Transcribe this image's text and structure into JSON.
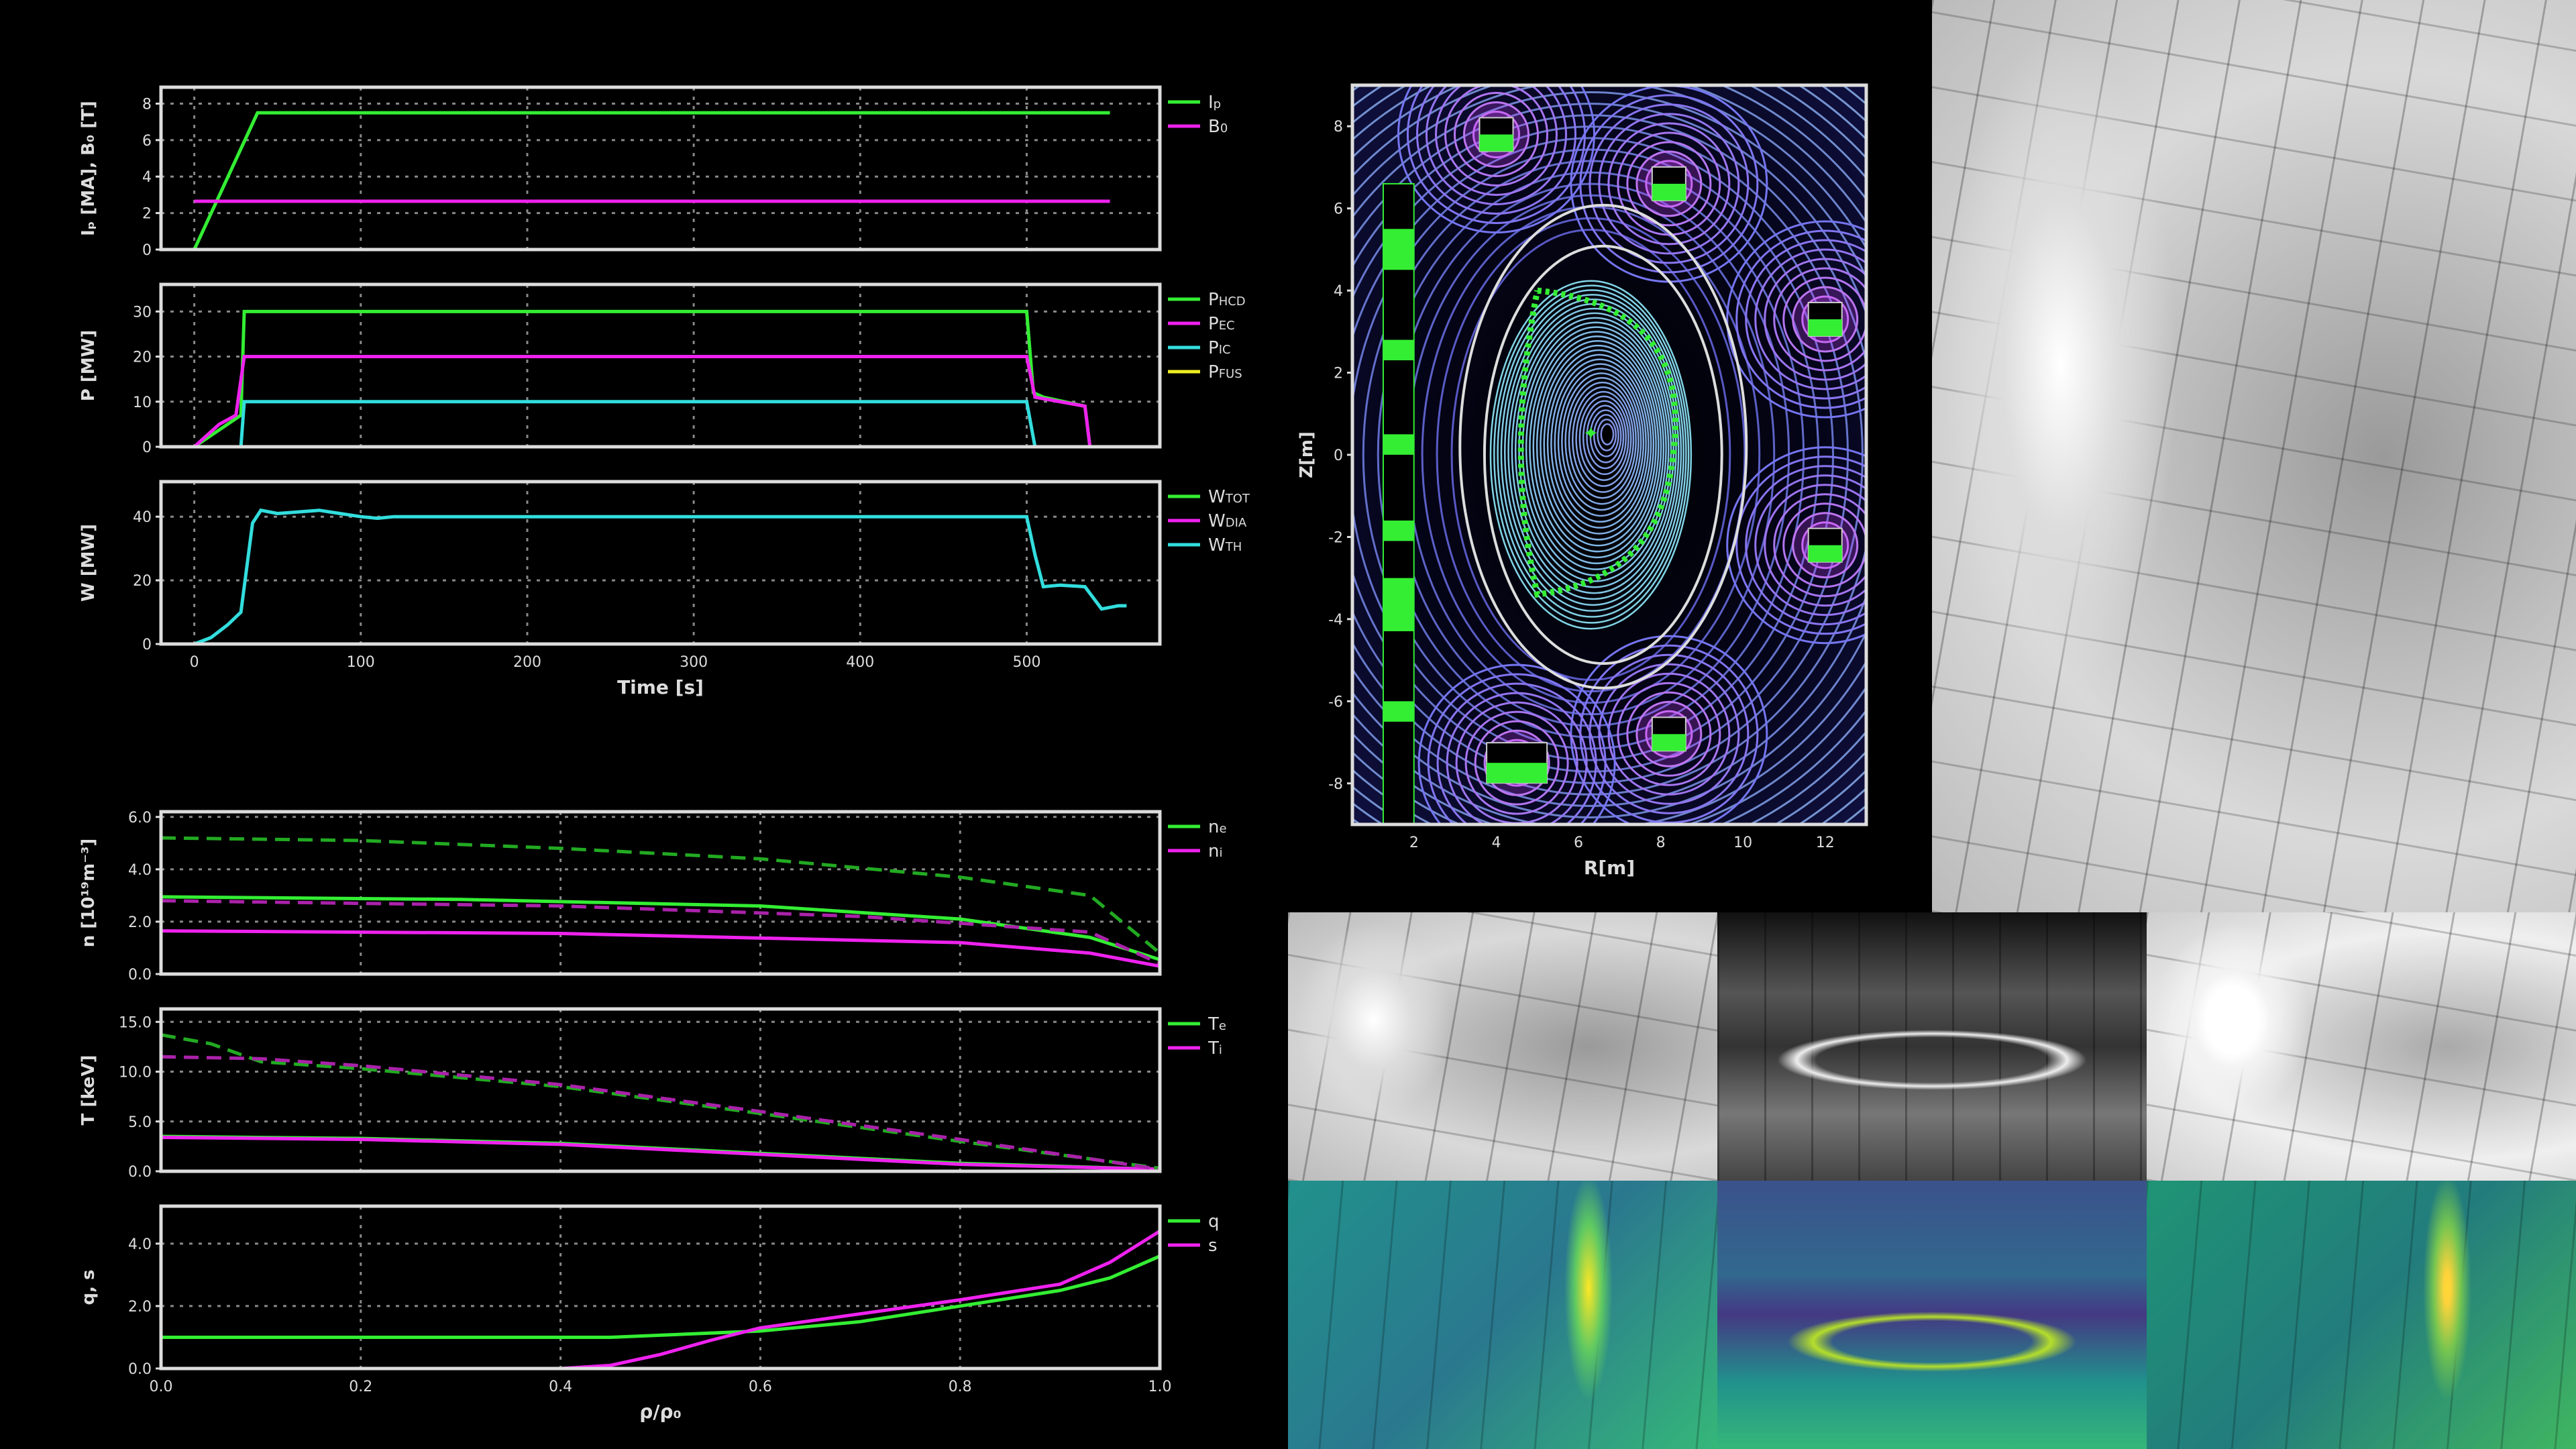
{
  "colors": {
    "green": "#33ee33",
    "magenta": "#ee22ee",
    "cyan": "#33dddd",
    "yellow": "#eeee22",
    "dkgreen": "#22aa22",
    "dkmagenta": "#aa22aa",
    "axis": "#dddddd",
    "grid": "#888888"
  },
  "chart_data": [
    {
      "type": "line",
      "ylabel": "Iₚ [MA], B₀ [T]",
      "xlim": [
        -20,
        580
      ],
      "ylim": [
        0,
        8.9
      ],
      "yticks": [
        "0",
        "2",
        "4",
        "6",
        "8"
      ],
      "ytickvals": [
        0,
        2,
        4,
        6,
        8
      ],
      "xtickvals": [
        0,
        100,
        200,
        300,
        400,
        500
      ],
      "xticks": [],
      "xlabel": "",
      "series": [
        {
          "name": "I",
          "sub": "p",
          "color": "green",
          "points": [
            [
              0,
              0
            ],
            [
              38,
              7.5
            ],
            [
              550,
              7.5
            ]
          ]
        },
        {
          "name": "B",
          "sub": "0",
          "color": "magenta",
          "points": [
            [
              0,
              2.65
            ],
            [
              550,
              2.65
            ]
          ]
        }
      ]
    },
    {
      "type": "line",
      "ylabel": "P [MW]",
      "xlim": [
        -20,
        580
      ],
      "ylim": [
        0,
        36
      ],
      "yticks": [
        "0",
        "10",
        "20",
        "30"
      ],
      "ytickvals": [
        0,
        10,
        20,
        30
      ],
      "xtickvals": [
        0,
        100,
        200,
        300,
        400,
        500
      ],
      "xticks": [],
      "xlabel": "",
      "series": [
        {
          "name": "P",
          "sub": "HCD",
          "color": "green",
          "points": [
            [
              0,
              0
            ],
            [
              28,
              7
            ],
            [
              30,
              30
            ],
            [
              500,
              30
            ],
            [
              504,
              12
            ],
            [
              510,
              11
            ],
            [
              535,
              9
            ],
            [
              538,
              0
            ]
          ]
        },
        {
          "name": "P",
          "sub": "EC",
          "color": "magenta",
          "points": [
            [
              0,
              0
            ],
            [
              15,
              5
            ],
            [
              25,
              7
            ],
            [
              30,
              20
            ],
            [
              500,
              20
            ],
            [
              505,
              11
            ],
            [
              535,
              9
            ],
            [
              538,
              0
            ]
          ]
        },
        {
          "name": "P",
          "sub": "IC",
          "color": "cyan",
          "points": [
            [
              28,
              0
            ],
            [
              30,
              10
            ],
            [
              500,
              10
            ],
            [
              505,
              0
            ]
          ]
        },
        {
          "name": "P",
          "sub": "FUS",
          "color": "yellow",
          "points": []
        }
      ]
    },
    {
      "type": "line",
      "ylabel": "W [MW]",
      "xlim": [
        -20,
        580
      ],
      "ylim": [
        0,
        51
      ],
      "yticks": [
        "0",
        "20",
        "40"
      ],
      "ytickvals": [
        0,
        20,
        40
      ],
      "xtickvals": [
        0,
        100,
        200,
        300,
        400,
        500
      ],
      "xticks": [
        "0",
        "100",
        "200",
        "300",
        "400",
        "500"
      ],
      "xlabel": "Time [s]",
      "series": [
        {
          "name": "W",
          "sub": "TOT",
          "color": "green",
          "points": []
        },
        {
          "name": "W",
          "sub": "DIA",
          "color": "magenta",
          "points": []
        },
        {
          "name": "W",
          "sub": "TH",
          "color": "cyan",
          "points": [
            [
              0,
              0
            ],
            [
              10,
              2
            ],
            [
              20,
              6
            ],
            [
              28,
              10
            ],
            [
              35,
              38
            ],
            [
              40,
              42
            ],
            [
              50,
              41
            ],
            [
              75,
              42
            ],
            [
              100,
              40
            ],
            [
              110,
              39.5
            ],
            [
              120,
              40
            ],
            [
              500,
              40
            ],
            [
              505,
              28
            ],
            [
              510,
              18
            ],
            [
              520,
              18.5
            ],
            [
              535,
              18
            ],
            [
              545,
              11
            ],
            [
              555,
              12
            ],
            [
              560,
              12
            ]
          ]
        }
      ]
    },
    {
      "type": "line",
      "ylabel": "n [10¹⁹m⁻³]",
      "xlim": [
        0,
        1
      ],
      "ylim": [
        0,
        6.2
      ],
      "yticks": [
        "0.0",
        "2.0",
        "4.0",
        "6.0"
      ],
      "ytickvals": [
        0,
        2,
        4,
        6
      ],
      "xtickvals": [
        0,
        0.2,
        0.4,
        0.6,
        0.8,
        1
      ],
      "xticks": [],
      "xlabel": "",
      "series": [
        {
          "name": "n",
          "sub": "e",
          "color": "green",
          "points": [
            [
              0,
              2.95
            ],
            [
              0.3,
              2.85
            ],
            [
              0.6,
              2.6
            ],
            [
              0.8,
              2.1
            ],
            [
              0.93,
              1.4
            ],
            [
              1,
              0.55
            ]
          ]
        },
        {
          "name": "n",
          "sub": "i",
          "color": "magenta",
          "points": [
            [
              0,
              1.65
            ],
            [
              0.4,
              1.55
            ],
            [
              0.8,
              1.2
            ],
            [
              0.93,
              0.8
            ],
            [
              1,
              0.3
            ]
          ]
        },
        {
          "name": "",
          "sub": "",
          "color": "dkgreen",
          "dashed": true,
          "points": [
            [
              0,
              5.2
            ],
            [
              0.2,
              5.1
            ],
            [
              0.4,
              4.8
            ],
            [
              0.6,
              4.4
            ],
            [
              0.8,
              3.7
            ],
            [
              0.93,
              3.0
            ],
            [
              1,
              0.8
            ]
          ]
        },
        {
          "name": "",
          "sub": "",
          "color": "dkmagenta",
          "dashed": true,
          "points": [
            [
              0,
              2.8
            ],
            [
              0.4,
              2.6
            ],
            [
              0.7,
              2.2
            ],
            [
              0.93,
              1.6
            ],
            [
              1,
              0.4
            ]
          ]
        }
      ]
    },
    {
      "type": "line",
      "ylabel": "T [keV]",
      "xlim": [
        0,
        1
      ],
      "ylim": [
        0,
        16.3
      ],
      "yticks": [
        "0.0",
        "5.0",
        "10.0",
        "15.0"
      ],
      "ytickvals": [
        0,
        5,
        10,
        15
      ],
      "xtickvals": [
        0,
        0.2,
        0.4,
        0.6,
        0.8,
        1
      ],
      "xticks": [],
      "xlabel": "",
      "series": [
        {
          "name": "T",
          "sub": "e",
          "color": "green",
          "points": [
            [
              0,
              3.5
            ],
            [
              0.2,
              3.3
            ],
            [
              0.4,
              2.8
            ],
            [
              0.6,
              1.8
            ],
            [
              0.8,
              0.8
            ],
            [
              1,
              0.2
            ]
          ]
        },
        {
          "name": "T",
          "sub": "i",
          "color": "magenta",
          "points": [
            [
              0,
              3.4
            ],
            [
              0.2,
              3.2
            ],
            [
              0.4,
              2.7
            ],
            [
              0.6,
              1.7
            ],
            [
              0.8,
              0.7
            ],
            [
              1,
              0.2
            ]
          ]
        },
        {
          "name": "",
          "sub": "",
          "color": "dkgreen",
          "dashed": true,
          "points": [
            [
              0,
              13.7
            ],
            [
              0.05,
              12.8
            ],
            [
              0.1,
              11
            ],
            [
              0.2,
              10.3
            ],
            [
              0.4,
              8.5
            ],
            [
              0.6,
              5.8
            ],
            [
              0.8,
              3
            ],
            [
              1,
              0.3
            ]
          ]
        },
        {
          "name": "",
          "sub": "",
          "color": "dkmagenta",
          "dashed": true,
          "points": [
            [
              0,
              11.5
            ],
            [
              0.1,
              11.3
            ],
            [
              0.2,
              10.6
            ],
            [
              0.4,
              8.7
            ],
            [
              0.6,
              6
            ],
            [
              0.8,
              3.2
            ],
            [
              1,
              0.2
            ]
          ]
        }
      ]
    },
    {
      "type": "line",
      "ylabel": "q, s",
      "xlim": [
        0,
        1
      ],
      "ylim": [
        0,
        5.2
      ],
      "yticks": [
        "0.0",
        "2.0",
        "4.0"
      ],
      "ytickvals": [
        0,
        2,
        4
      ],
      "xtickvals": [
        0,
        0.2,
        0.4,
        0.6,
        0.8,
        1
      ],
      "xticks": [
        "0.0",
        "0.2",
        "0.4",
        "0.6",
        "0.8",
        "1.0"
      ],
      "xlabel": "ρ/ρ₀",
      "series": [
        {
          "name": "q",
          "sub": "",
          "color": "green",
          "points": [
            [
              0,
              1
            ],
            [
              0.45,
              1
            ],
            [
              0.6,
              1.2
            ],
            [
              0.7,
              1.5
            ],
            [
              0.8,
              2
            ],
            [
              0.9,
              2.5
            ],
            [
              0.95,
              2.9
            ],
            [
              1,
              3.6
            ]
          ]
        },
        {
          "name": "s",
          "sub": "",
          "color": "magenta",
          "points": [
            [
              0.4,
              0
            ],
            [
              0.45,
              0.1
            ],
            [
              0.5,
              0.45
            ],
            [
              0.55,
              0.9
            ],
            [
              0.6,
              1.3
            ],
            [
              0.8,
              2.2
            ],
            [
              0.9,
              2.7
            ],
            [
              0.95,
              3.4
            ],
            [
              1,
              4.4
            ]
          ]
        }
      ]
    },
    {
      "type": "contour",
      "xlabel": "R[m]",
      "ylabel": "Z[m]",
      "xlim": [
        0.5,
        13
      ],
      "ylim": [
        -9,
        9
      ],
      "xticks": [
        "2",
        "4",
        "6",
        "8",
        "10",
        "12"
      ],
      "xtickvals": [
        2,
        4,
        6,
        8,
        10,
        12
      ],
      "yticks": [
        "-8",
        "-6",
        "-4",
        "-2",
        "0",
        "2",
        "4",
        "6",
        "8"
      ],
      "ytickvals": [
        -8,
        -6,
        -4,
        -2,
        0,
        2,
        4,
        6,
        8
      ],
      "magnetic_axis": [
        6.3,
        0.5
      ],
      "coils": [
        [
          4,
          7.8
        ],
        [
          8.2,
          6.6
        ],
        [
          12,
          3.3
        ],
        [
          12,
          -2.2
        ],
        [
          8.2,
          -6.8
        ],
        [
          4.5,
          -7.5
        ]
      ]
    }
  ]
}
